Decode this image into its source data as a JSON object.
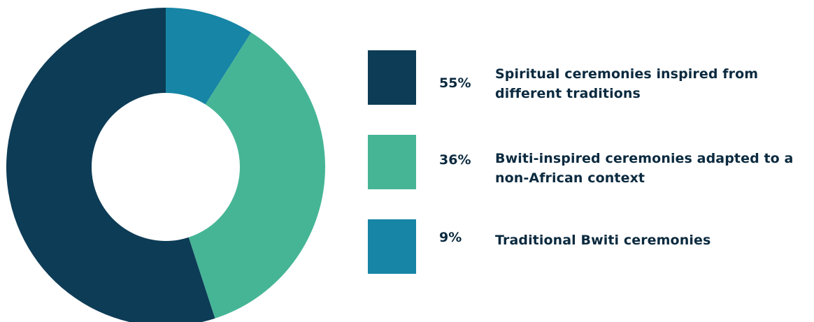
{
  "chart_data": {
    "type": "pie",
    "donut": true,
    "title": "",
    "slices": [
      {
        "label": "Spiritual ceremonies inspired from different traditions",
        "percent_label": "55%",
        "value": 55,
        "color": "#0d3c56"
      },
      {
        "label": "Bwiti-inspired ceremonies adapted to a non-African context",
        "percent_label": "36%",
        "value": 36,
        "color": "#46b596"
      },
      {
        "label": "Traditional Bwiti ceremonies",
        "percent_label": "9%",
        "value": 9,
        "color": "#1785a5"
      }
    ],
    "legend_position": "right"
  },
  "text_color": "#0b2a3f"
}
